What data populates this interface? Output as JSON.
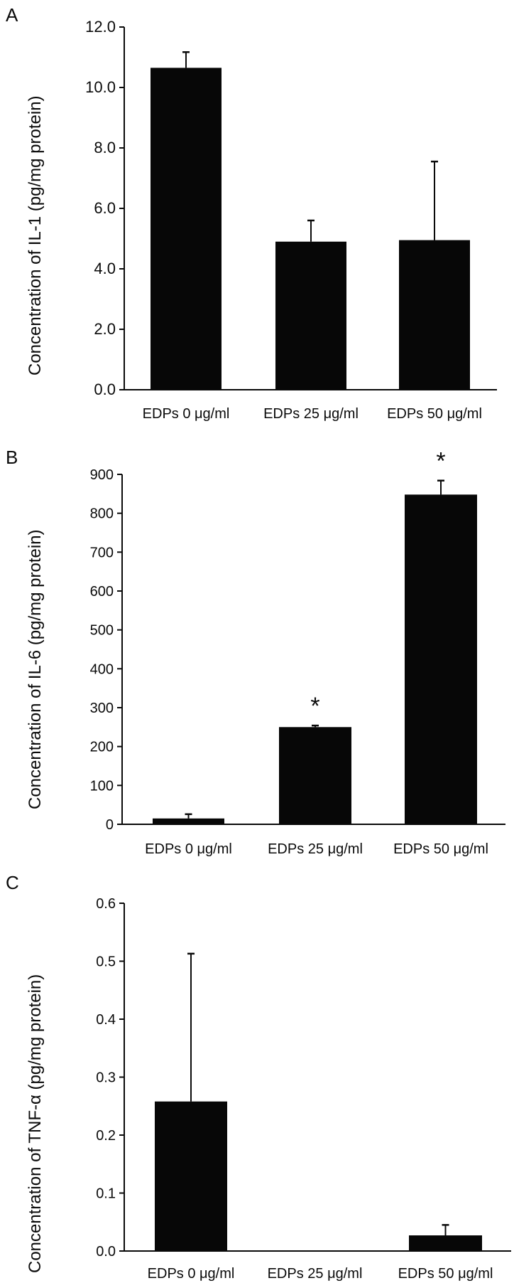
{
  "figure": {
    "panels": [
      {
        "letter": "A",
        "ylabel": "Concentration of IL-1 (pg/mg protein)"
      },
      {
        "letter": "B",
        "ylabel": "Concentration of IL-6 (pg/mg protein)"
      },
      {
        "letter": "C",
        "ylabel": "Concentration of TNF-α (pg/mg protein)"
      }
    ]
  },
  "chart_data": [
    {
      "type": "bar",
      "panel": "A",
      "title": "",
      "xlabel": "",
      "ylabel": "Concentration of IL-1 (pg/mg protein)",
      "categories": [
        "EDPs 0 μg/ml",
        "EDPs 25 μg/ml",
        "EDPs 50 μg/ml"
      ],
      "values": [
        10.65,
        4.9,
        4.95
      ],
      "error_upper": [
        0.52,
        0.7,
        2.6
      ],
      "significance": [
        "",
        "",
        ""
      ],
      "yticks": [
        "0.0",
        "2.0",
        "4.0",
        "6.0",
        "8.0",
        "10.0",
        "12.0"
      ],
      "ylim": [
        0,
        12
      ],
      "grid": false,
      "bar_color": "#070707"
    },
    {
      "type": "bar",
      "panel": "B",
      "title": "",
      "xlabel": "",
      "ylabel": "Concentration of IL-6 (pg/mg protein)",
      "categories": [
        "EDPs 0 μg/ml",
        "EDPs 25 μg/ml",
        "EDPs 50 μg/ml"
      ],
      "values": [
        15,
        250,
        848
      ],
      "error_upper": [
        11,
        4,
        36
      ],
      "significance": [
        "",
        "*",
        "*"
      ],
      "yticks": [
        "0",
        "100",
        "200",
        "300",
        "400",
        "500",
        "600",
        "700",
        "800",
        "900"
      ],
      "ylim": [
        0,
        900
      ],
      "grid": false,
      "bar_color": "#070707"
    },
    {
      "type": "bar",
      "panel": "C",
      "title": "",
      "xlabel": "",
      "ylabel": "Concentration of TNF-α (pg/mg protein)",
      "categories": [
        "EDPs 0 μg/ml",
        "EDPs 25 μg/ml",
        "EDPs 50 μg/ml"
      ],
      "values": [
        0.258,
        0.001,
        0.027
      ],
      "error_upper": [
        0.255,
        0,
        0.018
      ],
      "significance": [
        "",
        "",
        ""
      ],
      "yticks": [
        "0.0",
        "0.1",
        "0.2",
        "0.3",
        "0.4",
        "0.5",
        "0.6"
      ],
      "ylim": [
        0,
        0.6
      ],
      "grid": false,
      "bar_color": "#070707"
    }
  ]
}
